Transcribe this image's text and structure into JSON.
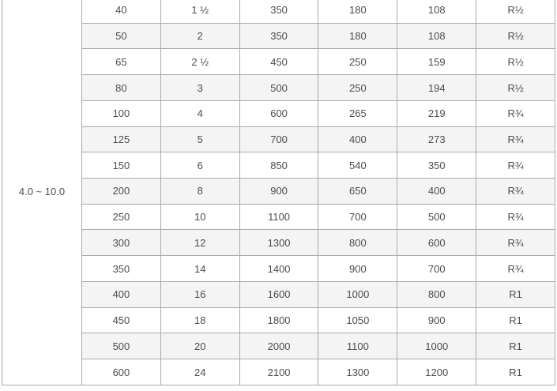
{
  "colors": {
    "background": "#ffffff",
    "border": "#aaaaaa",
    "stripe": "#f4f4f4",
    "text": "#4d4d4d"
  },
  "table": {
    "range_label": "4.0 ~ 10.0",
    "rows": [
      [
        "40",
        "1 ½",
        "350",
        "180",
        "108",
        "R½"
      ],
      [
        "50",
        "2",
        "350",
        "180",
        "108",
        "R½"
      ],
      [
        "65",
        "2 ½",
        "450",
        "250",
        "159",
        "R½"
      ],
      [
        "80",
        "3",
        "500",
        "250",
        "194",
        "R½"
      ],
      [
        "100",
        "4",
        "600",
        "265",
        "219",
        "R¾"
      ],
      [
        "125",
        "5",
        "700",
        "400",
        "273",
        "R¾"
      ],
      [
        "150",
        "6",
        "850",
        "540",
        "350",
        "R¾"
      ],
      [
        "200",
        "8",
        "900",
        "650",
        "400",
        "R¾"
      ],
      [
        "250",
        "10",
        "1100",
        "700",
        "500",
        "R¾"
      ],
      [
        "300",
        "12",
        "1300",
        "800",
        "600",
        "R¾"
      ],
      [
        "350",
        "14",
        "1400",
        "900",
        "700",
        "R¾"
      ],
      [
        "400",
        "16",
        "1600",
        "1000",
        "800",
        "R1"
      ],
      [
        "450",
        "18",
        "1800",
        "1050",
        "900",
        "R1"
      ],
      [
        "500",
        "20",
        "2000",
        "1100",
        "1000",
        "R1"
      ],
      [
        "600",
        "24",
        "2100",
        "1300",
        "1200",
        "R1"
      ]
    ]
  }
}
